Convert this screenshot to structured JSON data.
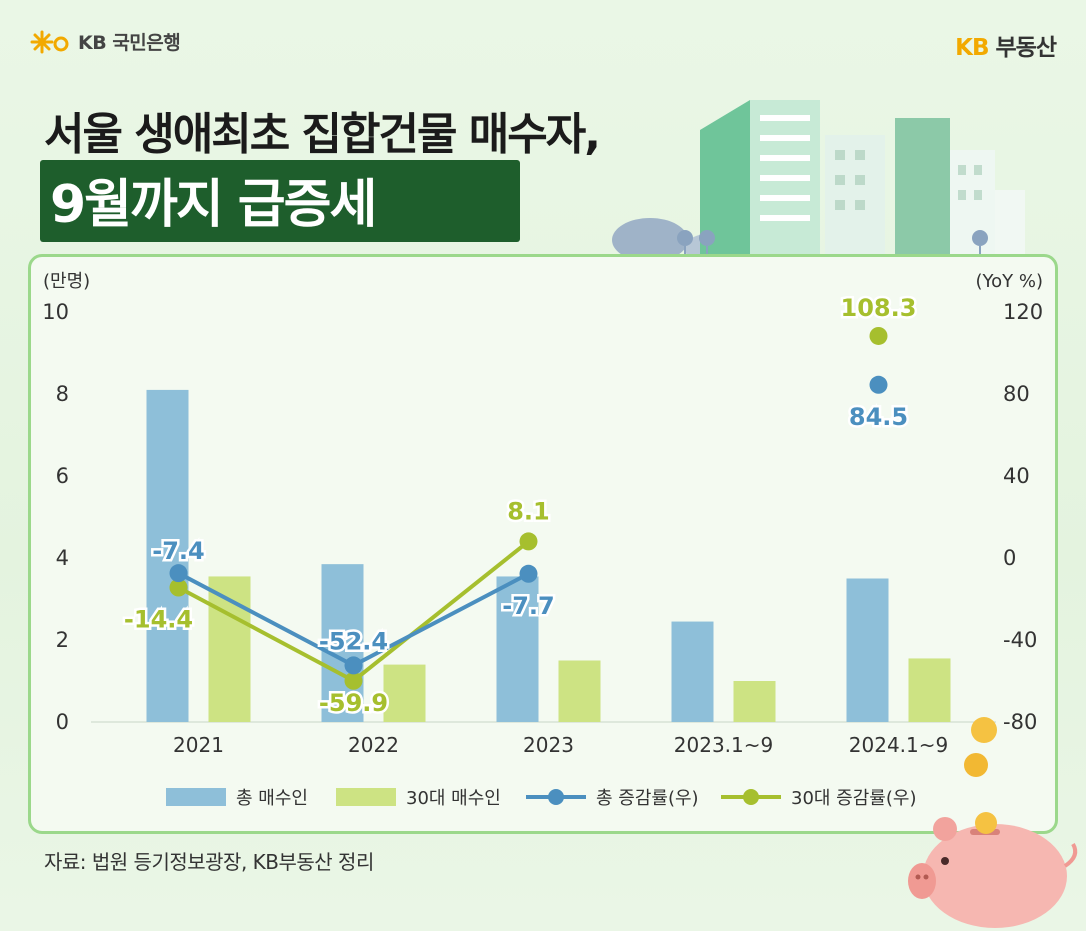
{
  "brand": {
    "bank_name": "KB 국민은행",
    "logo_kb": "KB",
    "logo_suffix": "부동산"
  },
  "title": {
    "line1": "서울 생애최초 집합건물 매수자,",
    "line2": "9월까지 급증세"
  },
  "source": "자료: 법원 등기정보광장, KB부동산 정리",
  "colors": {
    "bar_total": "#8ebfd9",
    "bar_30s": "#cde383",
    "line_total": "#4b8fbf",
    "line_30s": "#a6bf2e",
    "title_bg": "#1e5e2c",
    "panel_border": "#9bd88b"
  },
  "chart_data": {
    "type": "bar+line",
    "categories": [
      "2021",
      "2022",
      "2023",
      "2023.1~9",
      "2024.1~9"
    ],
    "left_axis": {
      "unit": "(만명)",
      "min": 0,
      "max": 10,
      "ticks": [
        "0",
        "2",
        "4",
        "6",
        "8",
        "10"
      ]
    },
    "right_axis": {
      "unit": "(YoY %)",
      "min": -80,
      "max": 120,
      "ticks": [
        "-80",
        "-40",
        "0",
        "40",
        "80",
        "120"
      ]
    },
    "series": [
      {
        "name": "총 매수인",
        "type": "bar",
        "axis": "left",
        "values": [
          8.1,
          3.85,
          3.55,
          2.45,
          3.5
        ]
      },
      {
        "name": "30대 매수인",
        "type": "bar",
        "axis": "left",
        "values": [
          3.55,
          1.4,
          1.5,
          1.0,
          1.55
        ]
      },
      {
        "name": "총 증감률(우)",
        "type": "line",
        "axis": "right",
        "values": [
          -7.4,
          -52.4,
          -7.7,
          null,
          84.5
        ],
        "labels": [
          "-7.4",
          "-52.4",
          "-7.7",
          "",
          "84.5"
        ]
      },
      {
        "name": "30대 증감률(우)",
        "type": "line",
        "axis": "right",
        "values": [
          -14.4,
          -59.9,
          8.1,
          null,
          108.3
        ],
        "labels": [
          "-14.4",
          "-59.9",
          "8.1",
          "",
          "108.3"
        ]
      }
    ],
    "legend": [
      "총 매수인",
      "30대 매수인",
      "총 증감률(우)",
      "30대 증감률(우)"
    ]
  }
}
